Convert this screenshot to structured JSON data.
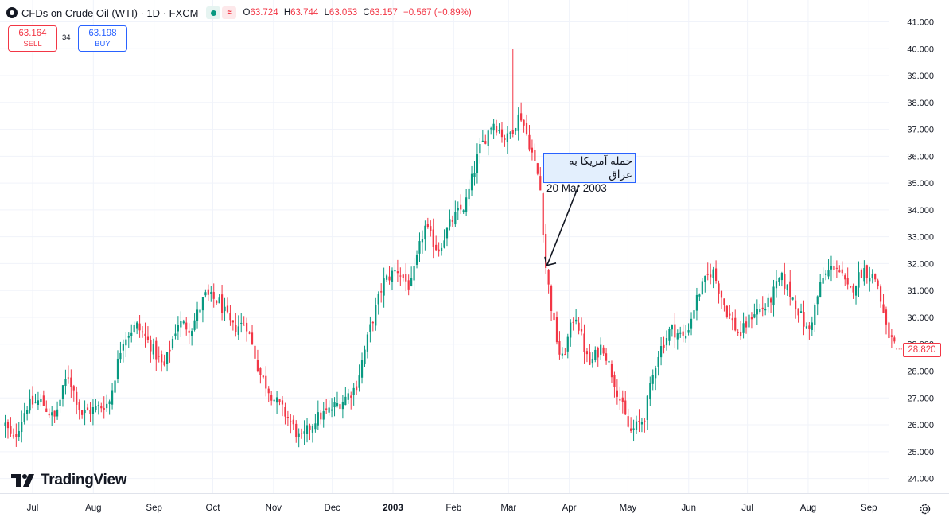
{
  "header": {
    "title": "CFDs on Crude Oil (WTI) · 1D · FXCM",
    "ohlc": {
      "o_label": "O",
      "o": "63.724",
      "h_label": "H",
      "h": "63.744",
      "l_label": "L",
      "l": "63.053",
      "c_label": "C",
      "c": "63.157",
      "change": "−0.567 (−0.89%)"
    },
    "icons": [
      "market-status-icon",
      "delayed-data-icon"
    ]
  },
  "trade": {
    "sell_price": "63.164",
    "sell_label": "SELL",
    "spread": "34",
    "buy_price": "63.198",
    "buy_label": "BUY"
  },
  "annotation": {
    "line1": "حمله آمریکا به عراق",
    "line2": "20 Mar 2003"
  },
  "branding": {
    "name": "TradingView"
  },
  "colors": {
    "up": "#089981",
    "down": "#f23645",
    "grid": "#f0f3fa",
    "annotation_bg": "#e3effd",
    "annotation_border": "#2962ff"
  },
  "chart_data": {
    "type": "candlestick",
    "title": "CFDs on Crude Oil (WTI) · 1D · FXCM",
    "y_ticks": [
      "24.000",
      "25.000",
      "26.000",
      "27.000",
      "28.000",
      "29.000",
      "30.000",
      "31.000",
      "32.000",
      "33.000",
      "34.000",
      "35.000",
      "36.000",
      "37.000",
      "38.000",
      "39.000",
      "40.000",
      "41.000"
    ],
    "ylim": [
      23.5,
      41.3
    ],
    "x_ticks": [
      {
        "label": "Jul",
        "date": "2002-07-01"
      },
      {
        "label": "Aug",
        "date": "2002-08-01"
      },
      {
        "label": "Sep",
        "date": "2002-09-01"
      },
      {
        "label": "Oct",
        "date": "2002-10-01"
      },
      {
        "label": "Nov",
        "date": "2002-11-01"
      },
      {
        "label": "Dec",
        "date": "2002-12-01"
      },
      {
        "label": "2003",
        "date": "2003-01-01",
        "bold": true
      },
      {
        "label": "Feb",
        "date": "2003-02-01"
      },
      {
        "label": "Mar",
        "date": "2003-03-01"
      },
      {
        "label": "Apr",
        "date": "2003-04-01"
      },
      {
        "label": "May",
        "date": "2003-05-01"
      },
      {
        "label": "Jun",
        "date": "2003-06-01"
      },
      {
        "label": "Jul",
        "date": "2003-07-01"
      },
      {
        "label": "Aug",
        "date": "2003-08-01"
      },
      {
        "label": "Sep",
        "date": "2003-09-01"
      }
    ],
    "last_price": "28.820",
    "annotation_point": {
      "date": "2003-03-20",
      "price": 31.9
    },
    "close_path": [
      [
        "2002-06-17",
        26.0
      ],
      [
        "2002-06-21",
        25.4
      ],
      [
        "2002-06-28",
        26.7
      ],
      [
        "2002-07-05",
        26.9
      ],
      [
        "2002-07-12",
        26.2
      ],
      [
        "2002-07-19",
        27.9
      ],
      [
        "2002-07-26",
        26.4
      ],
      [
        "2002-08-02",
        26.6
      ],
      [
        "2002-08-09",
        26.8
      ],
      [
        "2002-08-16",
        29.2
      ],
      [
        "2002-08-23",
        29.7
      ],
      [
        "2002-08-30",
        29.0
      ],
      [
        "2002-09-06",
        28.1
      ],
      [
        "2002-09-13",
        29.8
      ],
      [
        "2002-09-20",
        29.6
      ],
      [
        "2002-09-27",
        30.8
      ],
      [
        "2002-10-04",
        30.6
      ],
      [
        "2002-10-11",
        29.6
      ],
      [
        "2002-10-18",
        29.8
      ],
      [
        "2002-10-25",
        27.9
      ],
      [
        "2002-11-01",
        27.0
      ],
      [
        "2002-11-08",
        26.3
      ],
      [
        "2002-11-15",
        25.4
      ],
      [
        "2002-11-22",
        26.2
      ],
      [
        "2002-11-29",
        26.5
      ],
      [
        "2002-12-06",
        26.9
      ],
      [
        "2002-12-13",
        27.4
      ],
      [
        "2002-12-20",
        29.5
      ],
      [
        "2002-12-27",
        31.3
      ],
      [
        "2003-01-03",
        31.8
      ],
      [
        "2003-01-10",
        31.1
      ],
      [
        "2003-01-17",
        33.4
      ],
      [
        "2003-01-24",
        32.5
      ],
      [
        "2003-01-31",
        33.6
      ],
      [
        "2003-02-07",
        34.2
      ],
      [
        "2003-02-14",
        36.2
      ],
      [
        "2003-02-21",
        37.3
      ],
      [
        "2003-02-28",
        36.6
      ],
      [
        "2003-03-07",
        37.6
      ],
      [
        "2003-03-12",
        36.4
      ],
      [
        "2003-03-17",
        35.0
      ],
      [
        "2003-03-20",
        31.9
      ],
      [
        "2003-03-24",
        29.8
      ],
      [
        "2003-03-28",
        28.3
      ],
      [
        "2003-04-04",
        30.2
      ],
      [
        "2003-04-11",
        28.2
      ],
      [
        "2003-04-18",
        29.0
      ],
      [
        "2003-04-25",
        27.4
      ],
      [
        "2003-05-02",
        25.7
      ],
      [
        "2003-05-09",
        26.2
      ],
      [
        "2003-05-16",
        28.6
      ],
      [
        "2003-05-23",
        29.6
      ],
      [
        "2003-05-30",
        29.2
      ],
      [
        "2003-06-06",
        30.9
      ],
      [
        "2003-06-13",
        31.8
      ],
      [
        "2003-06-20",
        30.3
      ],
      [
        "2003-06-27",
        29.3
      ],
      [
        "2003-07-04",
        30.2
      ],
      [
        "2003-07-11",
        30.4
      ],
      [
        "2003-07-18",
        31.5
      ],
      [
        "2003-07-25",
        30.6
      ],
      [
        "2003-08-01",
        29.4
      ],
      [
        "2003-08-08",
        31.4
      ],
      [
        "2003-08-15",
        32.0
      ],
      [
        "2003-08-22",
        30.9
      ],
      [
        "2003-08-29",
        31.8
      ],
      [
        "2003-09-05",
        31.4
      ],
      [
        "2003-09-10",
        29.5
      ],
      [
        "2003-09-15",
        28.8
      ]
    ],
    "spike": {
      "date": "2003-03-03",
      "high": 40.0
    }
  }
}
